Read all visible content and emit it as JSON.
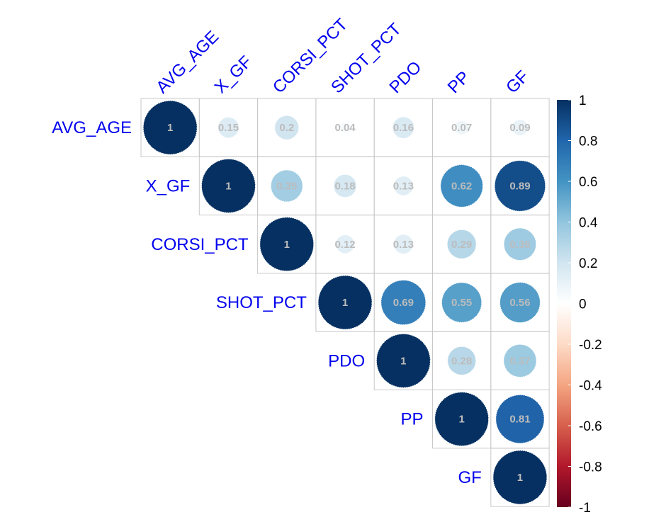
{
  "chart_data": {
    "type": "heatmap",
    "variables": [
      "AVG_AGE",
      "X_GF",
      "CORSI_PCT",
      "SHOT_PCT",
      "PDO",
      "PP",
      "GF"
    ],
    "matrix": [
      [
        1,
        0.15,
        0.2,
        0.04,
        0.16,
        0.07,
        0.09
      ],
      [
        null,
        1,
        0.35,
        0.18,
        0.13,
        0.62,
        0.89
      ],
      [
        null,
        null,
        1,
        0.12,
        0.13,
        0.29,
        0.36
      ],
      [
        null,
        null,
        null,
        1,
        0.69,
        0.55,
        0.56
      ],
      [
        null,
        null,
        null,
        null,
        1,
        0.28,
        0.37
      ],
      [
        null,
        null,
        null,
        null,
        null,
        1,
        0.81
      ],
      [
        null,
        null,
        null,
        null,
        null,
        null,
        1
      ]
    ],
    "colorbar": {
      "ticks": [
        "1",
        "0.8",
        "0.6",
        "0.4",
        "0.2",
        "0",
        "-0.2",
        "-0.4",
        "-0.6",
        "-0.8",
        "-1"
      ],
      "range": [
        -1,
        1
      ],
      "palette": [
        "#67001F",
        "#B2182B",
        "#D6604D",
        "#F4A582",
        "#FDDBC7",
        "#FFFFFF",
        "#D1E5F0",
        "#92C5DE",
        "#4393C3",
        "#2166AC",
        "#053061"
      ]
    },
    "label_color": "#0000EE",
    "grid": true,
    "layout_style": "upper triangle, circle glyphs"
  }
}
